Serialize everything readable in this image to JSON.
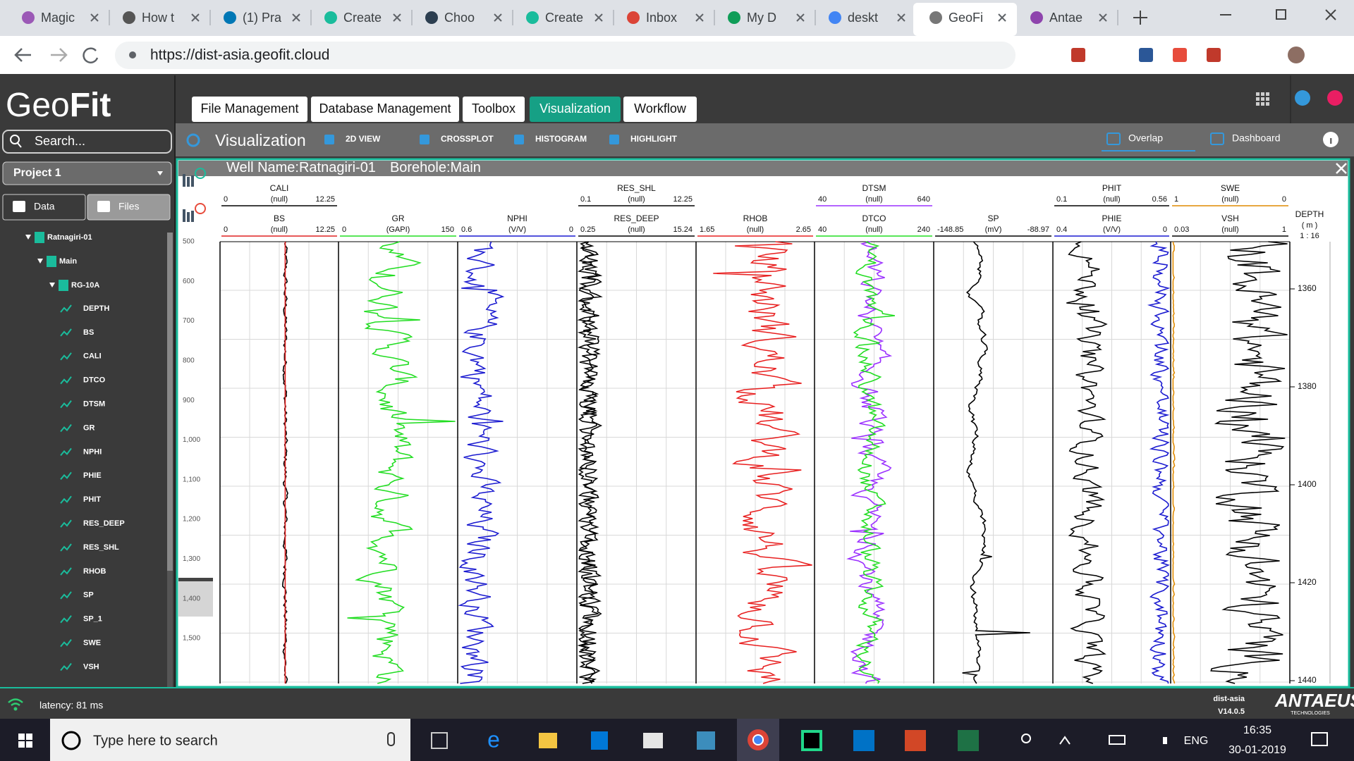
{
  "browser": {
    "tabs": [
      "Magic",
      "How t",
      "(1) Pra",
      "Create",
      "Choo",
      "Create",
      "Inbox",
      "My D",
      "deskt",
      "GeoFi",
      "Antae"
    ],
    "active_tab": 9,
    "url": "https://dist-asia.geofit.cloud"
  },
  "app": {
    "logo_light": "Geo",
    "logo_bold": "Fit",
    "nav": [
      "File Management",
      "Database Management",
      "Toolbox",
      "Visualization",
      "Workflow"
    ],
    "active_nav": 3
  },
  "toolbar": {
    "title": "Visualization",
    "tools": [
      "2D VIEW",
      "CROSSPLOT",
      "HISTOGRAM",
      "HIGHLIGHT"
    ],
    "right": [
      "Overlap",
      "Dashboard"
    ]
  },
  "sidebar": {
    "search": "Search...",
    "project": "Project 1",
    "tabs": [
      "Data",
      "Files"
    ],
    "tree": {
      "well": "Ratnagiri-01",
      "borehole": "Main",
      "log": "RG-10A",
      "curves": [
        "DEPTH",
        "BS",
        "CALI",
        "DTCO",
        "DTSM",
        "GR",
        "NPHI",
        "PHIE",
        "PHIT",
        "RES_DEEP",
        "RES_SHL",
        "RHOB",
        "SP",
        "SP_1",
        "SWE",
        "VSH"
      ]
    }
  },
  "panel": {
    "well": "Well Name:Ratnagiri-01",
    "borehole": "Borehole:Main",
    "index_ticks": [
      "500",
      "600",
      "700",
      "800",
      "900",
      "1,000",
      "1,100",
      "1,200",
      "1,300",
      "1,400",
      "1,500"
    ],
    "tracks": [
      {
        "curves": [
          {
            "name": "CALI",
            "unit": "(null)",
            "min": "0",
            "max": "12.25",
            "color": "#000000",
            "row": "top"
          },
          {
            "name": "BS",
            "unit": "(null)",
            "min": "0",
            "max": "12.25",
            "color": "#e02020",
            "row": "bottom"
          }
        ]
      },
      {
        "curves": [
          {
            "name": "GR",
            "unit": "(GAPI)",
            "min": "0",
            "max": "150",
            "color": "#22dd22",
            "row": "bottom"
          }
        ]
      },
      {
        "curves": [
          {
            "name": "NPHI",
            "unit": "(V/V)",
            "min": "0.6",
            "max": "0",
            "color": "#1a1ad0",
            "row": "bottom"
          }
        ]
      },
      {
        "curves": [
          {
            "name": "RES_SHL",
            "unit": "(null)",
            "min": "0.1",
            "max": "12.25",
            "color": "#000000",
            "row": "top"
          },
          {
            "name": "RES_DEEP",
            "unit": "(null)",
            "min": "0.25",
            "max": "15.24",
            "color": "#000000",
            "row": "bottom"
          }
        ]
      },
      {
        "curves": [
          {
            "name": "RHOB",
            "unit": "(null)",
            "min": "1.65",
            "max": "2.65",
            "color": "#e82020",
            "row": "bottom"
          }
        ]
      },
      {
        "curves": [
          {
            "name": "DTSM",
            "unit": "(null)",
            "min": "40",
            "max": "640",
            "color": "#9b30ff",
            "row": "top"
          },
          {
            "name": "DTCO",
            "unit": "(null)",
            "min": "40",
            "max": "240",
            "color": "#22dd22",
            "row": "bottom"
          }
        ]
      },
      {
        "curves": [
          {
            "name": "SP",
            "unit": "(mV)",
            "min": "-148.85",
            "max": "-88.97",
            "color": "#000000",
            "row": "bottom"
          }
        ]
      },
      {
        "curves": [
          {
            "name": "PHIT",
            "unit": "(null)",
            "min": "0.1",
            "max": "0.56",
            "color": "#000000",
            "row": "top"
          },
          {
            "name": "PHIE",
            "unit": "(V/V)",
            "min": "0.4",
            "max": "0",
            "color": "#1a1ad0",
            "row": "bottom"
          }
        ]
      },
      {
        "curves": [
          {
            "name": "SWE",
            "unit": "(null)",
            "min": "1",
            "max": "0",
            "color": "#e08a00",
            "row": "top"
          },
          {
            "name": "VSH",
            "unit": "(null)",
            "min": "0.03",
            "max": "1",
            "color": "#000000",
            "row": "bottom"
          }
        ]
      }
    ],
    "depth_axis": {
      "label": "DEPTH",
      "unit": "( m )",
      "scale": "1 : 16",
      "ticks": [
        "1360",
        "1380",
        "1400",
        "1420",
        "1440"
      ]
    }
  },
  "status": {
    "latency": "latency: 81 ms",
    "server": "dist-asia",
    "version": "V14.0.5",
    "brand": "ANTAEUS",
    "brand_sub": "TECHNOLOGIES"
  },
  "taskbar": {
    "search": "Type here to search",
    "lang": "ENG",
    "time": "16:35",
    "date": "30-01-2019"
  }
}
